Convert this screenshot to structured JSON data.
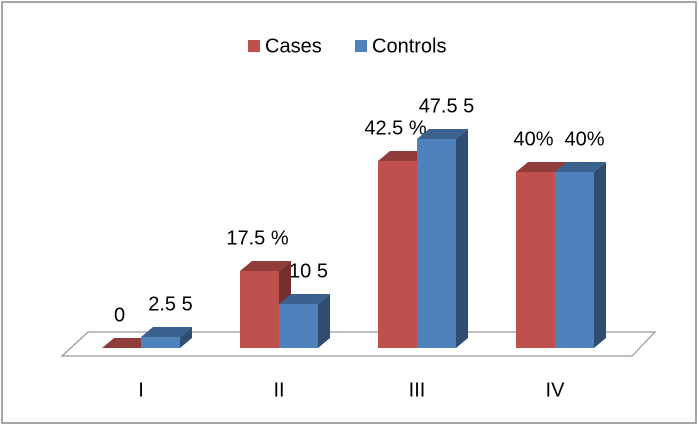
{
  "chart_data": {
    "type": "bar3d",
    "categories": [
      "I",
      "II",
      "III",
      "IV"
    ],
    "series": [
      {
        "name": "Cases",
        "color": "#c0504d",
        "values": [
          0,
          17.5,
          42.5,
          40
        ],
        "value_labels": [
          "0",
          "17.5 %",
          "42.5 %",
          "40%"
        ]
      },
      {
        "name": "Controls",
        "color": "#4f81bd",
        "values": [
          2.5,
          10,
          47.5,
          40
        ],
        "value_labels": [
          "2.5 5",
          "10 5",
          "47.5 5",
          "40%"
        ]
      }
    ],
    "legend": "top"
  }
}
